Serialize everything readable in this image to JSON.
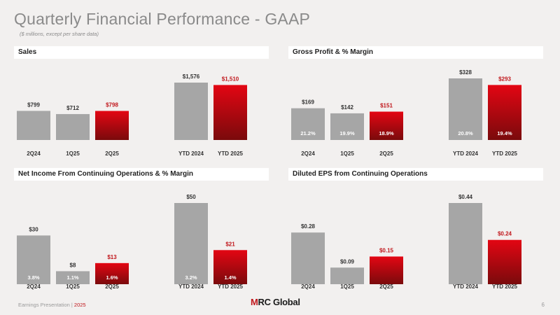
{
  "header": {
    "title": "Quarterly Financial Performance - GAAP",
    "subtitle": "($ millions, except per share data)"
  },
  "footer": {
    "presentation": "Earnings Presentation |",
    "year": "2025",
    "logo_m": "M",
    "logo_rest": "RC Global",
    "page": "6"
  },
  "colors": {
    "gray_bar": "#a6a6a6",
    "red_top": "#e30613",
    "red_bottom": "#7a0a0c",
    "red_text": "#c0161b",
    "dark_text": "#333333"
  },
  "chart_data": [
    {
      "type": "bar",
      "title": "Sales",
      "categories": [
        "2Q24",
        "1Q25",
        "2Q25",
        "YTD 2024",
        "YTD 2025"
      ],
      "values": [
        799,
        712,
        798,
        1576,
        1510
      ],
      "value_labels": [
        "$799",
        "$712",
        "$798",
        "$1,576",
        "$1,510"
      ],
      "highlight": [
        false,
        false,
        true,
        false,
        true
      ],
      "ylim": [
        0,
        1576
      ]
    },
    {
      "type": "bar",
      "title": "Gross Profit & % Margin",
      "categories": [
        "2Q24",
        "1Q25",
        "2Q25",
        "YTD 2024",
        "YTD 2025"
      ],
      "values": [
        169,
        142,
        151,
        328,
        293
      ],
      "value_labels": [
        "$169",
        "$142",
        "$151",
        "$328",
        "$293"
      ],
      "margins": [
        "21.2%",
        "19.9%",
        "18.9%",
        "20.8%",
        "19.4%"
      ],
      "highlight": [
        false,
        false,
        true,
        false,
        true
      ],
      "ylim": [
        0,
        328
      ]
    },
    {
      "type": "bar",
      "title": "Net Income From Continuing Operations & % Margin",
      "categories": [
        "2Q24",
        "1Q25",
        "2Q25",
        "YTD 2024",
        "YTD 2025"
      ],
      "values": [
        30,
        8,
        13,
        50,
        21
      ],
      "value_labels": [
        "$30",
        "$8",
        "$13",
        "$50",
        "$21"
      ],
      "margins": [
        "3.8%",
        "1.1%",
        "1.6%",
        "3.2%",
        "1.4%"
      ],
      "highlight": [
        false,
        false,
        true,
        false,
        true
      ],
      "ylim": [
        0,
        50
      ]
    },
    {
      "type": "bar",
      "title": "Diluted EPS from Continuing Operations",
      "categories": [
        "2Q24",
        "1Q25",
        "2Q25",
        "YTD 2024",
        "YTD 2025"
      ],
      "values": [
        0.28,
        0.09,
        0.15,
        0.44,
        0.24
      ],
      "value_labels": [
        "$0.28",
        "$0.09",
        "$0.15",
        "$0.44",
        "$0.24"
      ],
      "highlight": [
        false,
        false,
        true,
        false,
        true
      ],
      "ylim": [
        0,
        0.44
      ]
    }
  ]
}
